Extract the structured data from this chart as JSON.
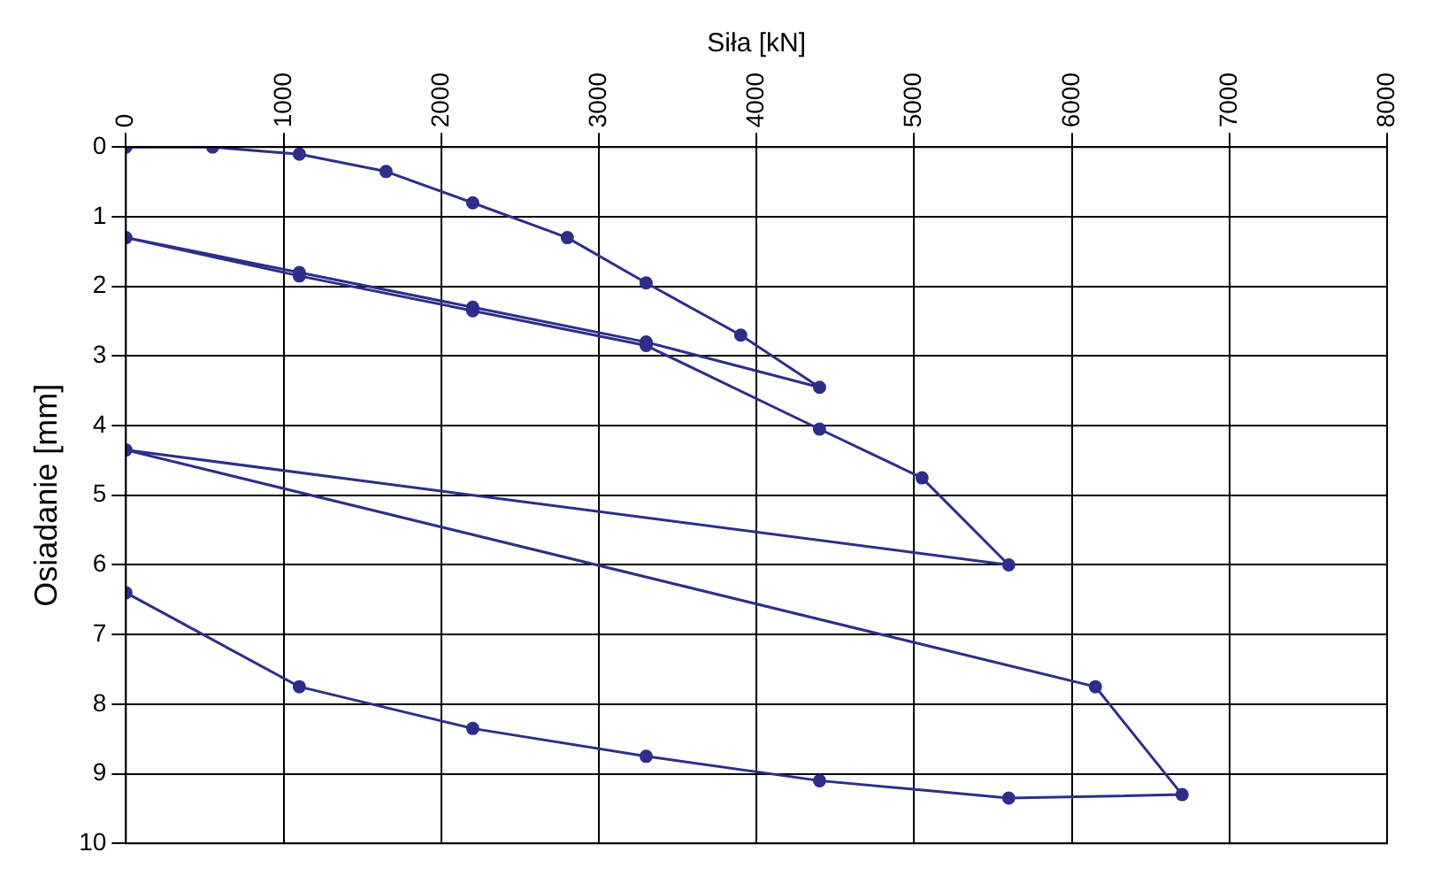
{
  "chart_data": {
    "type": "line",
    "xlabel": "Siła [kN]",
    "ylabel": "Osiadanie [mm]",
    "series": [
      {
        "color": "#2e2e8a",
        "x": [
          0,
          550,
          1100,
          1650,
          2200,
          2800,
          3300,
          3900,
          4400,
          3300,
          2200,
          1100,
          0,
          1100,
          2200,
          3300,
          4400,
          5050,
          5600,
          0,
          6150,
          6700,
          5600,
          4400,
          3300,
          2200,
          1100,
          0
        ],
        "values": [
          0,
          0,
          0.1,
          0.35,
          0.8,
          1.3,
          1.95,
          2.7,
          3.45,
          2.8,
          2.3,
          1.8,
          1.3,
          1.85,
          2.35,
          2.85,
          4.05,
          4.75,
          6.0,
          4.35,
          7.75,
          9.3,
          9.35,
          9.1,
          8.75,
          8.35,
          7.75,
          6.4
        ]
      }
    ],
    "xlim": [
      0,
      8000
    ],
    "xticks": [
      0,
      1000,
      2000,
      3000,
      4000,
      5000,
      6000,
      7000,
      8000
    ],
    "ylim": [
      10,
      0
    ],
    "yticks": [
      0,
      1,
      2,
      3,
      4,
      5,
      6,
      7,
      8,
      9,
      10
    ],
    "grid": true,
    "legend": false,
    "marker": "circle",
    "line_style": "solid"
  }
}
